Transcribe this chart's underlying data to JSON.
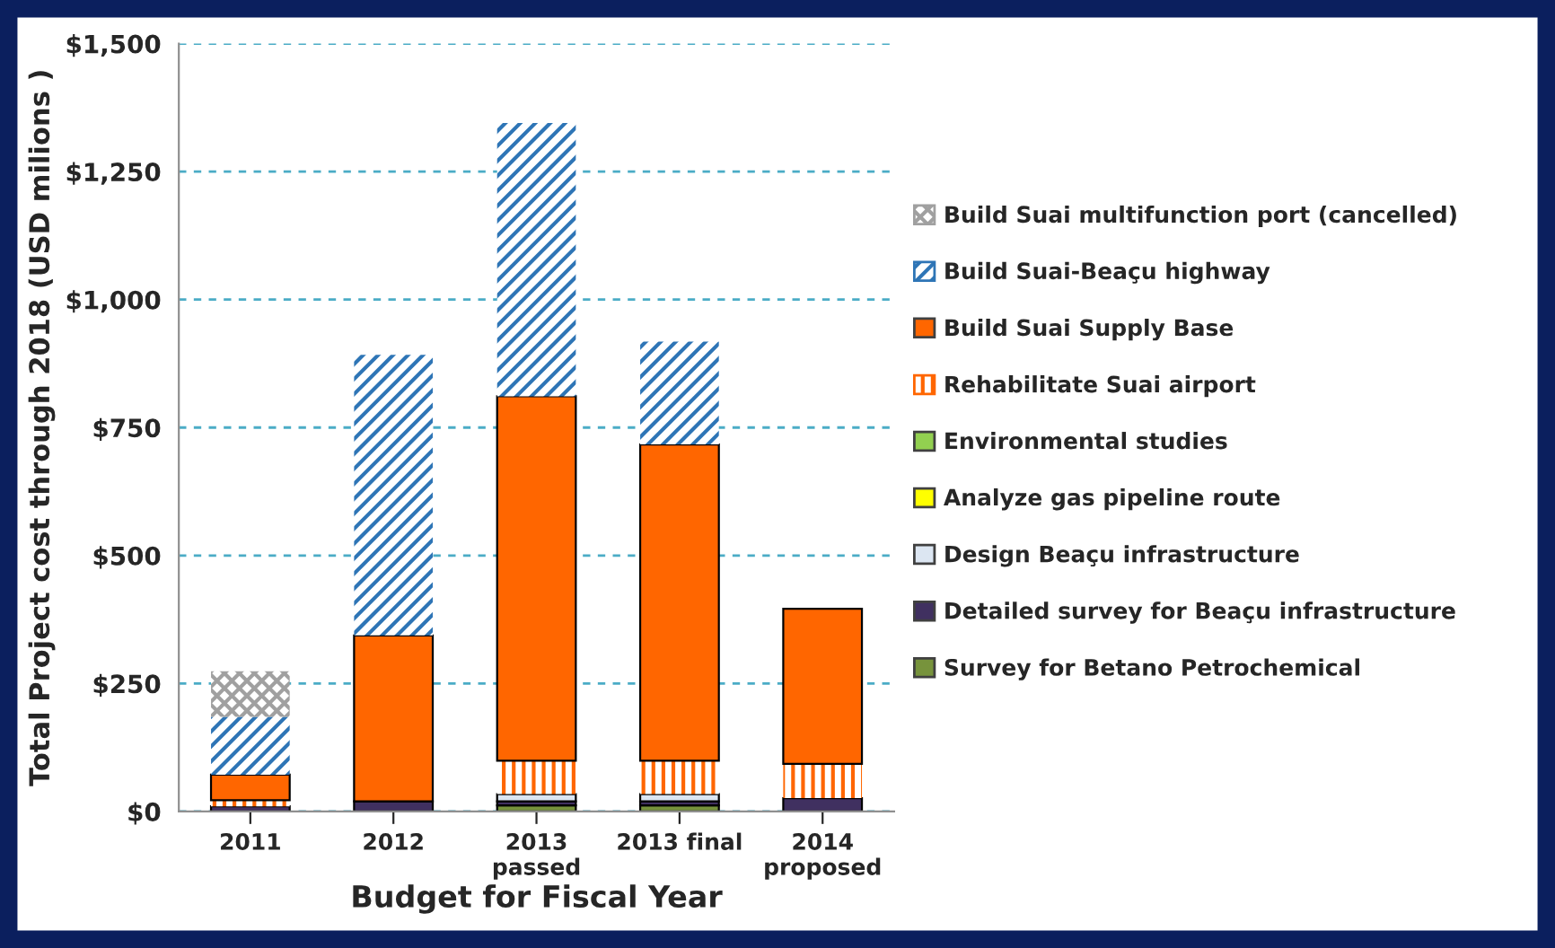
{
  "chart_data": {
    "type": "bar",
    "stacked": true,
    "categories": [
      "2011",
      "2012",
      "2013\npassed",
      "2013 final",
      "2014\nproposed"
    ],
    "xlabel": "Budget for Fiscal Year",
    "ylabel": "Total Project cost through 2018 (USD milions )",
    "ylim": [
      0,
      1500
    ],
    "yticks": [
      {
        "value": 0,
        "label": "$0"
      },
      {
        "value": 250,
        "label": "$250"
      },
      {
        "value": 500,
        "label": "$500"
      },
      {
        "value": 750,
        "label": "$750"
      },
      {
        "value": 1000,
        "label": "$1,000"
      },
      {
        "value": 1250,
        "label": "$1,250"
      },
      {
        "value": 1500,
        "label": "$1,500"
      }
    ],
    "grid": "y",
    "legend": "right",
    "series": [
      {
        "name": "Survey for Betano Petrochemical",
        "color": "#77933c",
        "values": [
          0,
          0,
          12,
          12,
          0
        ]
      },
      {
        "name": "Detailed survey for Beaçu infrastructure",
        "color": "#403060",
        "values": [
          10,
          20,
          8,
          8,
          26
        ]
      },
      {
        "name": "Design Beaçu infrastructure",
        "color": "#dce6f2",
        "values": [
          0,
          0,
          14,
          14,
          0
        ]
      },
      {
        "name": "Analyze gas pipeline route",
        "color": "#ffff00",
        "values": [
          0,
          0,
          0,
          0,
          0
        ]
      },
      {
        "name": "Environmental studies",
        "color": "#92d050",
        "values": [
          0,
          0,
          0,
          0,
          0
        ]
      },
      {
        "name": "Rehabilitate Suai airport",
        "color": "#ff6600",
        "values": [
          12,
          0,
          65,
          65,
          67
        ]
      },
      {
        "name": "Build Suai Supply Base",
        "color": "#ff6600",
        "values": [
          50,
          324,
          712,
          618,
          303
        ]
      },
      {
        "name": "Build Suai-Beaçu highway",
        "color": "#2e75b6",
        "values": [
          113,
          548,
          534,
          201,
          0
        ]
      },
      {
        "name": "Build Suai multifunction port (cancelled)",
        "color": "#a0a0a0",
        "values": [
          89,
          0,
          0,
          0,
          0
        ]
      }
    ]
  }
}
